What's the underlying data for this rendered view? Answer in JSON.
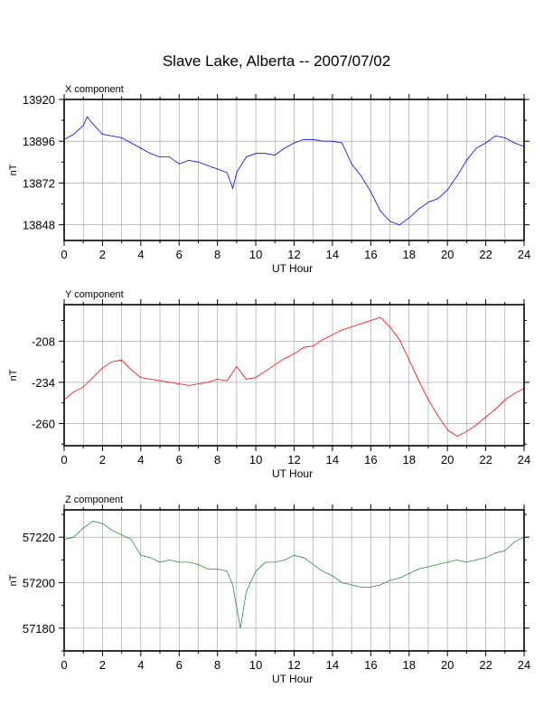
{
  "title": "Slave Lake, Alberta -- 2007/07/02",
  "chart_data": [
    {
      "type": "line",
      "panel_label": "X component",
      "xlabel": "UT Hour",
      "ylabel": "nT",
      "xlim": [
        0,
        24
      ],
      "ylim": [
        13839,
        13920
      ],
      "yticks": [
        13848,
        13872,
        13896,
        13920
      ],
      "xticks": [
        0,
        2,
        4,
        6,
        8,
        10,
        12,
        14,
        16,
        18,
        20,
        22,
        24
      ],
      "grid": true,
      "color": "#0000ff",
      "x": [
        0,
        0.5,
        1,
        1.2,
        1.5,
        2,
        2.5,
        3,
        3.5,
        4,
        4.5,
        5,
        5.5,
        6,
        6.5,
        7,
        7.5,
        8,
        8.5,
        8.8,
        9,
        9.5,
        10,
        10.5,
        11,
        11.5,
        12,
        12.5,
        13,
        13.5,
        14,
        14.5,
        15,
        15.5,
        16,
        16.5,
        17,
        17.5,
        18,
        18.5,
        19,
        19.5,
        20,
        20.5,
        21,
        21.5,
        22,
        22.5,
        23,
        23.5,
        24
      ],
      "y": [
        13897,
        13900,
        13905,
        13910,
        13906,
        13900,
        13899,
        13898,
        13895,
        13892,
        13889,
        13887,
        13887,
        13883,
        13885,
        13884,
        13882,
        13880,
        13878,
        13869,
        13878,
        13887,
        13889,
        13889,
        13888,
        13892,
        13895,
        13897,
        13897,
        13896,
        13896,
        13895,
        13883,
        13876,
        13867,
        13856,
        13850,
        13848,
        13852,
        13857,
        13861,
        13863,
        13868,
        13876,
        13885,
        13892,
        13895,
        13899,
        13898,
        13895,
        13893
      ]
    },
    {
      "type": "line",
      "panel_label": "Y component",
      "xlabel": "UT Hour",
      "ylabel": "nT",
      "xlim": [
        0,
        24
      ],
      "ylim": [
        -274,
        -185
      ],
      "yticks": [
        -208,
        -234,
        -260
      ],
      "xticks": [
        0,
        2,
        4,
        6,
        8,
        10,
        12,
        14,
        16,
        18,
        20,
        22,
        24
      ],
      "grid": true,
      "color": "#ff0000",
      "x": [
        0,
        0.5,
        1,
        1.5,
        2,
        2.5,
        3,
        3.5,
        4,
        4.5,
        5,
        5.5,
        6,
        6.5,
        7,
        7.5,
        8,
        8.5,
        9,
        9.5,
        10,
        10.5,
        11,
        11.5,
        12,
        12.5,
        13,
        13.5,
        14,
        14.5,
        15,
        15.5,
        16,
        16.5,
        17,
        17.5,
        18,
        18.5,
        19,
        19.5,
        20,
        20.5,
        21,
        21.5,
        22,
        22.5,
        23,
        23.5,
        24
      ],
      "y": [
        -245,
        -240,
        -237,
        -231,
        -225,
        -221,
        -220,
        -226,
        -231,
        -232,
        -233,
        -234,
        -235,
        -236,
        -235,
        -234,
        -232,
        -233,
        -224,
        -232,
        -231,
        -227,
        -223,
        -219,
        -216,
        -212,
        -211,
        -207,
        -204,
        -201,
        -199,
        -197,
        -195,
        -193,
        -199,
        -207,
        -220,
        -233,
        -245,
        -255,
        -264,
        -268,
        -265,
        -261,
        -256,
        -251,
        -245,
        -241,
        -238
      ]
    },
    {
      "type": "line",
      "panel_label": "Z component",
      "xlabel": "UT Hour",
      "ylabel": "nT",
      "xlim": [
        0,
        24
      ],
      "ylim": [
        57170,
        57232
      ],
      "yticks": [
        57180,
        57200,
        57220
      ],
      "xticks": [
        0,
        2,
        4,
        6,
        8,
        10,
        12,
        14,
        16,
        18,
        20,
        22,
        24
      ],
      "grid": true,
      "color": "#2e8b3e",
      "x": [
        0,
        0.5,
        1,
        1.5,
        2,
        2.5,
        3,
        3.5,
        4,
        4.5,
        5,
        5.5,
        6,
        6.5,
        7,
        7.5,
        8,
        8.5,
        8.8,
        9,
        9.2,
        9.5,
        10,
        10.5,
        11,
        11.5,
        12,
        12.5,
        13,
        13.5,
        14,
        14.5,
        15,
        15.5,
        16,
        16.5,
        17,
        17.5,
        18,
        18.5,
        19,
        19.5,
        20,
        20.5,
        21,
        21.5,
        22,
        22.5,
        23,
        23.5,
        24
      ],
      "y": [
        57219,
        57220,
        57224,
        57227,
        57226,
        57223,
        57221,
        57219,
        57212,
        57211,
        57209,
        57210,
        57209,
        57209,
        57208,
        57206,
        57206,
        57205,
        57199,
        57189,
        57180,
        57196,
        57205,
        57209,
        57209,
        57210,
        57212,
        57211,
        57208,
        57205,
        57203,
        57200,
        57199,
        57198,
        57198,
        57199,
        57201,
        57202,
        57204,
        57206,
        57207,
        57208,
        57209,
        57210,
        57209,
        57210,
        57211,
        57213,
        57214,
        57218,
        57220
      ]
    }
  ]
}
